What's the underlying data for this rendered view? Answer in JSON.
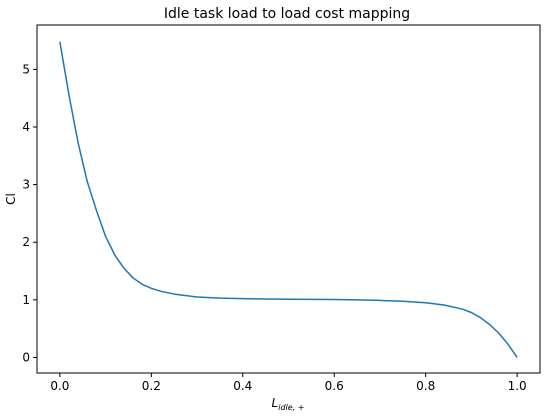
{
  "chart_data": {
    "type": "line",
    "title": "Idle task load to load cost mapping",
    "xlabel_main": "L",
    "xlabel_sub": "idle, +",
    "ylabel": "Cl",
    "xlim": [
      -0.05,
      1.05
    ],
    "ylim": [
      -0.27,
      5.77
    ],
    "x_ticks": [
      0.0,
      0.2,
      0.4,
      0.6,
      0.8,
      1.0
    ],
    "x_tick_labels": [
      "0.0",
      "0.2",
      "0.4",
      "0.6",
      "0.8",
      "1.0"
    ],
    "y_ticks": [
      0,
      1,
      2,
      3,
      4,
      5
    ],
    "y_tick_labels": [
      "0",
      "1",
      "2",
      "3",
      "4",
      "5"
    ],
    "grid": false,
    "series": [
      {
        "color": "#1f77b4",
        "x": [
          0.0,
          0.02,
          0.04,
          0.06,
          0.08,
          0.1,
          0.12,
          0.14,
          0.16,
          0.18,
          0.2,
          0.22,
          0.25,
          0.3,
          0.35,
          0.4,
          0.45,
          0.5,
          0.55,
          0.6,
          0.65,
          0.7,
          0.75,
          0.8,
          0.84,
          0.88,
          0.9,
          0.92,
          0.94,
          0.96,
          0.98,
          1.0
        ],
        "y": [
          5.48,
          4.55,
          3.72,
          3.05,
          2.55,
          2.1,
          1.78,
          1.55,
          1.38,
          1.27,
          1.2,
          1.15,
          1.1,
          1.05,
          1.03,
          1.02,
          1.015,
          1.01,
          1.008,
          1.005,
          1.0,
          0.99,
          0.975,
          0.95,
          0.91,
          0.84,
          0.78,
          0.69,
          0.57,
          0.42,
          0.23,
          0.0
        ]
      }
    ]
  }
}
